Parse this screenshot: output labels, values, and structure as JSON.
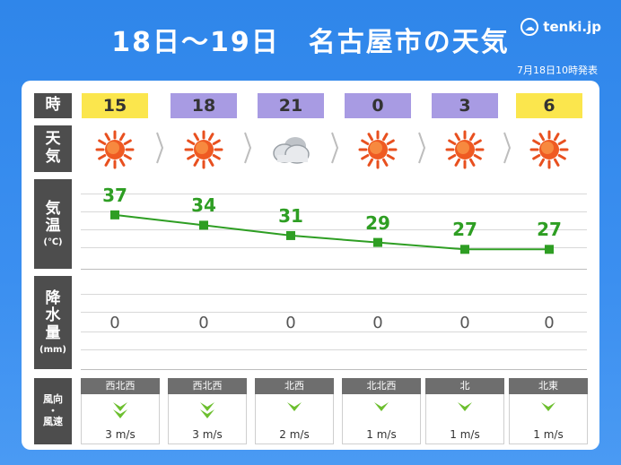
{
  "title": "18日～19日　名古屋市の天気",
  "logo": "tenki.jp",
  "issued": "7月18日10時発表",
  "row_labels": {
    "time": "時",
    "weather": [
      "天",
      "気"
    ],
    "temperature": [
      "気",
      "温",
      "(℃)"
    ],
    "precipitation": [
      "降",
      "水",
      "量",
      "(mm)"
    ],
    "wind": [
      "風向",
      "・",
      "風速"
    ]
  },
  "forecast": [
    {
      "hour": "15",
      "period": "day",
      "weather": "sunny",
      "temp": "37",
      "rain": "0",
      "wind_dir": "西北西",
      "wind_speed": "3 m/s"
    },
    {
      "hour": "18",
      "period": "night",
      "weather": "sunny",
      "temp": "34",
      "rain": "0",
      "wind_dir": "西北西",
      "wind_speed": "3 m/s"
    },
    {
      "hour": "21",
      "period": "night",
      "weather": "cloudy",
      "temp": "31",
      "rain": "0",
      "wind_dir": "北西",
      "wind_speed": "2 m/s"
    },
    {
      "hour": "0",
      "period": "night",
      "weather": "sunny",
      "temp": "29",
      "rain": "0",
      "wind_dir": "北北西",
      "wind_speed": "1 m/s"
    },
    {
      "hour": "3",
      "period": "night",
      "weather": "sunny",
      "temp": "27",
      "rain": "0",
      "wind_dir": "北",
      "wind_speed": "1 m/s"
    },
    {
      "hour": "6",
      "period": "day",
      "weather": "sunny",
      "temp": "27",
      "rain": "0",
      "wind_dir": "北東",
      "wind_speed": "1 m/s"
    }
  ],
  "colors": {
    "day": "#fbe64d",
    "night": "#a89be3",
    "temp_line": "#2e9e23",
    "wind_arrow": "#6cbf2e"
  },
  "icons": {
    "sunny": "sun-icon",
    "cloudy": "cloud-icon",
    "wind": "wind-arrow-icon"
  }
}
